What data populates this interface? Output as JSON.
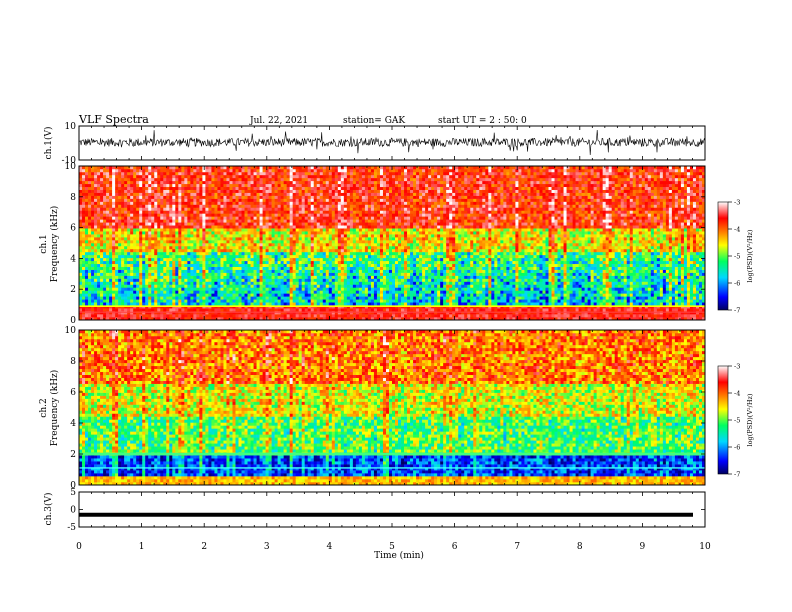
{
  "header": {
    "title": "VLF Spectra",
    "date": "Jul. 22, 2021",
    "station": "station= GAK",
    "start": "start UT =  2 : 50: 0"
  },
  "chart_data": [
    {
      "name": "ch1-waveform",
      "type": "line",
      "ylabel": "ch.1(V)",
      "ylim": [
        -10,
        10
      ],
      "yticks": [
        "10",
        "-10"
      ],
      "xlim": [
        0,
        10
      ],
      "baseline": 0.4,
      "amplitude": 2.5,
      "color": "#000000"
    },
    {
      "name": "ch1-spectrogram",
      "type": "heatmap",
      "ylabel": "Frequency (kHz)",
      "channel": "ch.1",
      "ylim": [
        0,
        10
      ],
      "yticks": [
        "0",
        "2",
        "4",
        "6",
        "8",
        "10"
      ],
      "xlim": [
        0,
        10
      ],
      "colorbar": {
        "label": "log(PSD)(V²/Hz)",
        "range": [
          -7,
          -3
        ],
        "ticks": [
          "-3",
          "-4",
          "-5",
          "-6",
          "-7"
        ]
      }
    },
    {
      "name": "ch2-spectrogram",
      "type": "heatmap",
      "ylabel": "Frequency (kHz)",
      "channel": "ch.2",
      "ylim": [
        0,
        10
      ],
      "yticks": [
        "0",
        "2",
        "4",
        "6",
        "8",
        "10"
      ],
      "xlim": [
        0,
        10
      ],
      "colorbar": {
        "label": "log(PSD)(V²/Hz)",
        "range": [
          -7,
          -3
        ],
        "ticks": [
          "-3",
          "-4",
          "-5",
          "-6",
          "-7"
        ]
      }
    },
    {
      "name": "ch3-waveform",
      "type": "line",
      "ylabel": "ch.3(V)",
      "ylim": [
        -5,
        5
      ],
      "yticks": [
        "5",
        "0",
        "-5"
      ],
      "xlim": [
        0,
        10
      ],
      "baseline": -1.5,
      "color": "#000000"
    }
  ],
  "xaxis": {
    "label": "Time (min)",
    "ticks": [
      "0",
      "1",
      "2",
      "3",
      "4",
      "5",
      "6",
      "7",
      "8",
      "9",
      "10"
    ]
  },
  "colors": {
    "colormap": [
      "#000060",
      "#0000ff",
      "#00d8ff",
      "#00ff60",
      "#ffff00",
      "#ff8000",
      "#ff0000",
      "#ffffff"
    ]
  }
}
